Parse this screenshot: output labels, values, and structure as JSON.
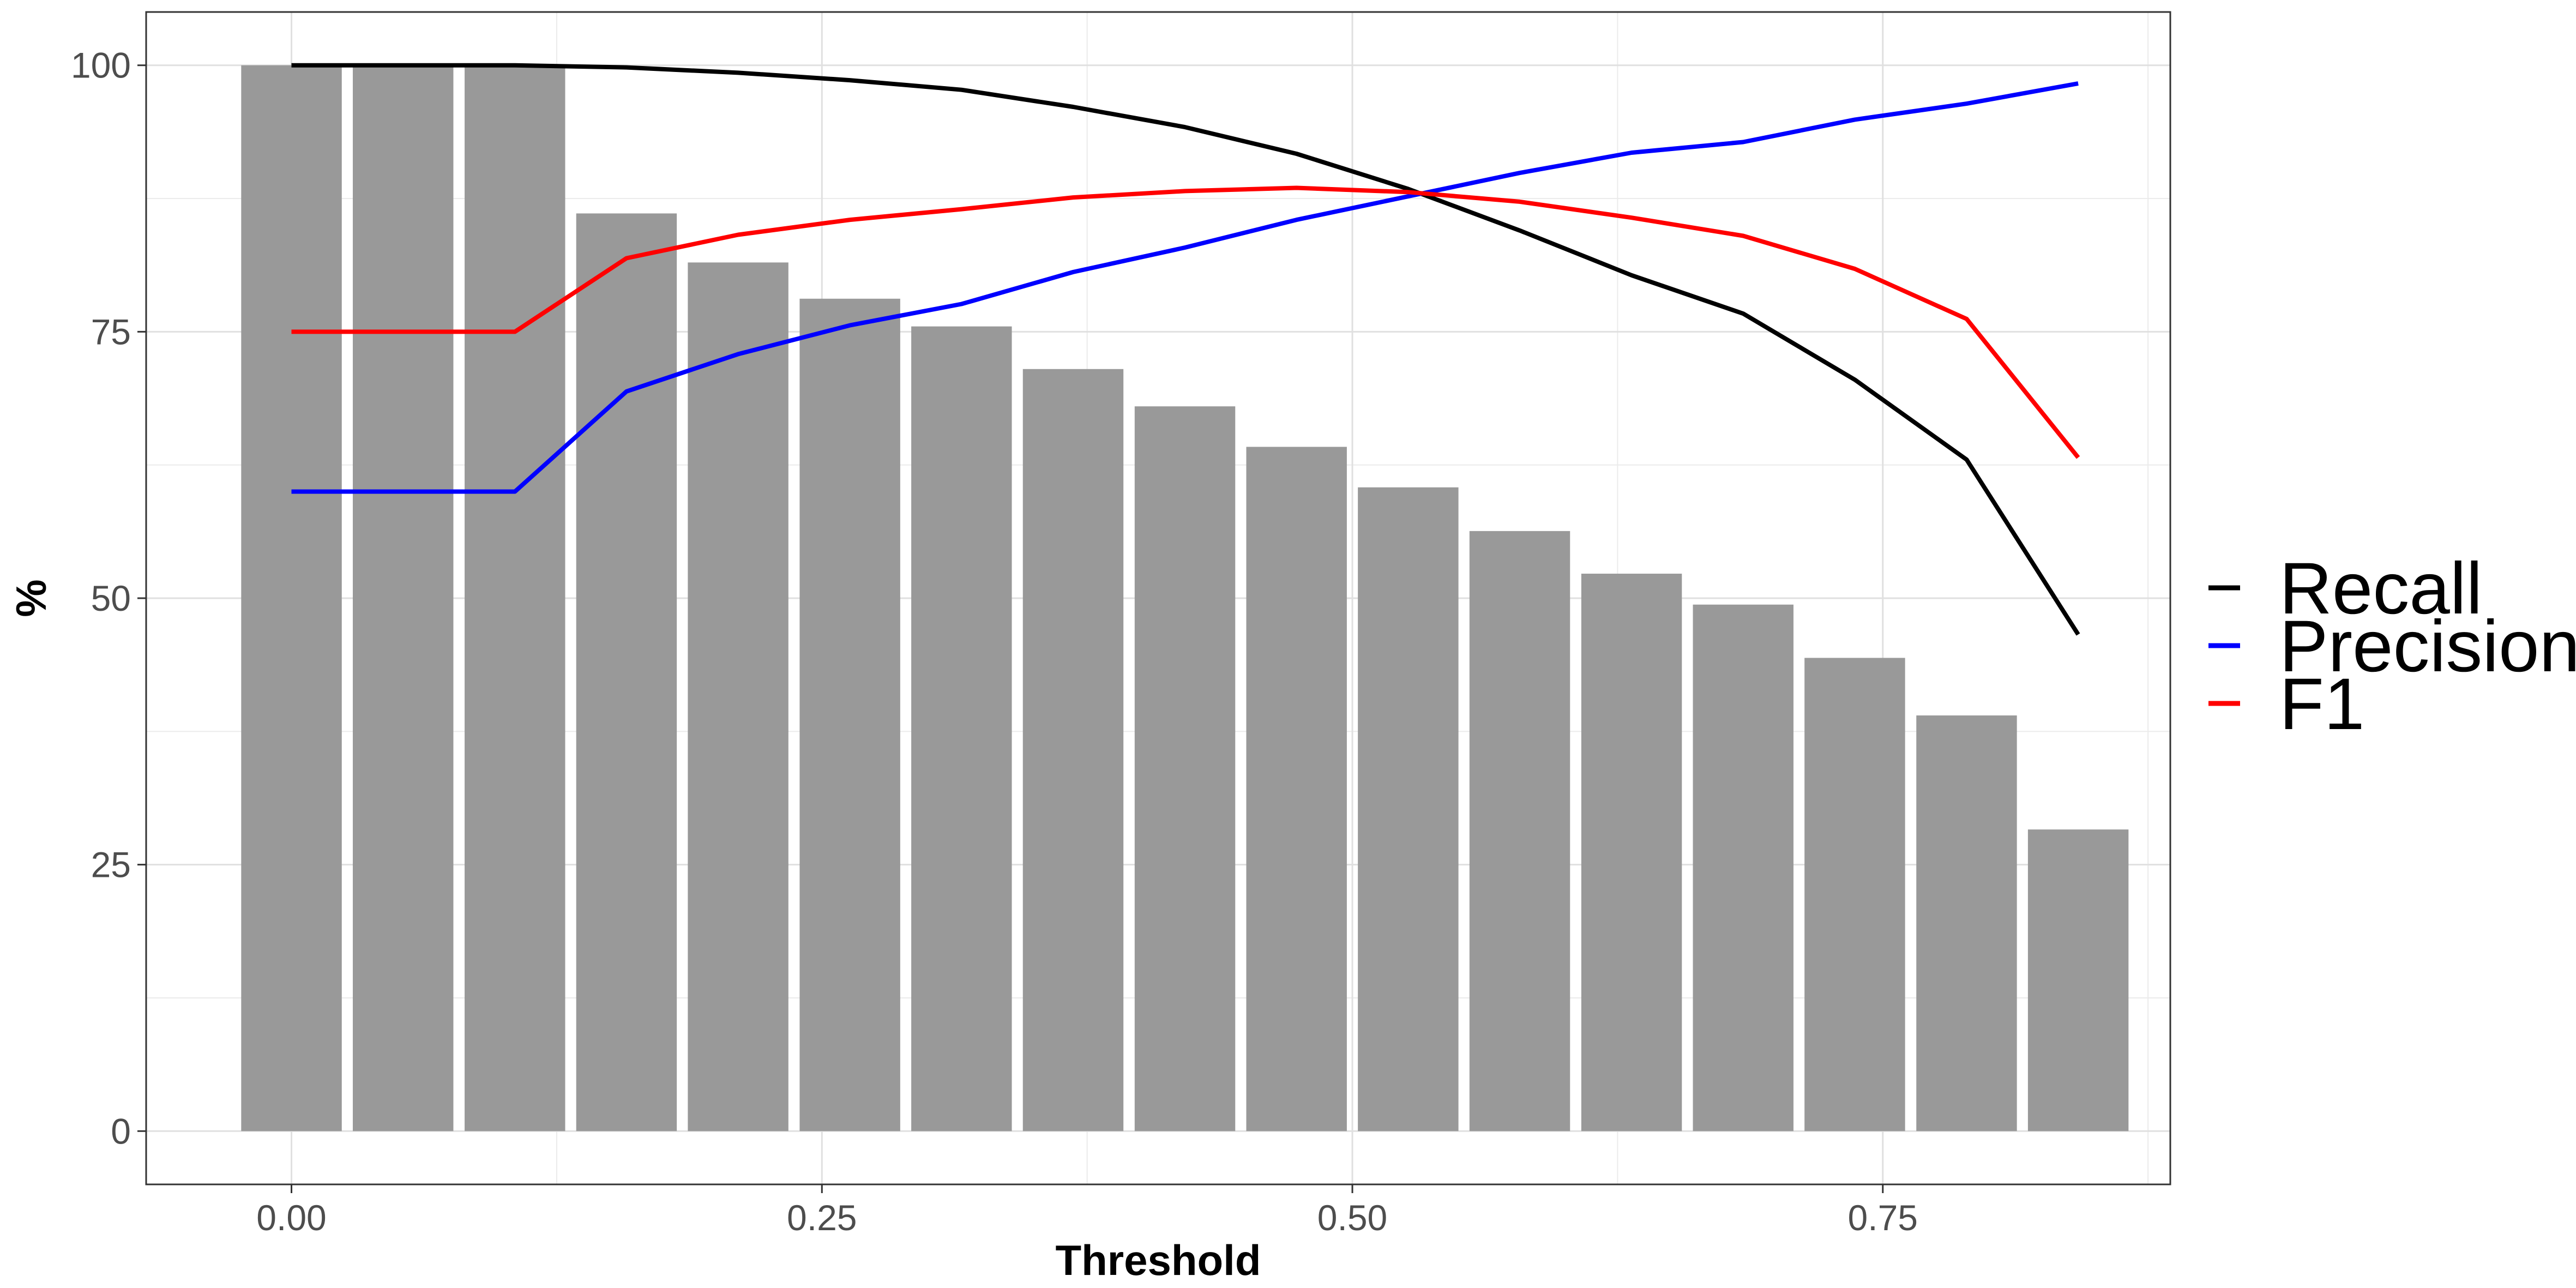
{
  "chart_data": {
    "type": "bar",
    "xlabel": "Threshold",
    "ylabel": "%",
    "xlim": [
      -0.0685,
      0.8855
    ],
    "ylim": [
      -5,
      105
    ],
    "x_ticks": [
      0.0,
      0.25,
      0.5,
      0.75
    ],
    "x_tick_labels": [
      "0.00",
      "0.25",
      "0.50",
      "0.75"
    ],
    "y_ticks": [
      0,
      25,
      50,
      75,
      100
    ],
    "y_tick_labels": [
      "0",
      "25",
      "50",
      "75",
      "100"
    ],
    "grid": true,
    "legend_position": "right",
    "bar_width": 0.0474,
    "bar_color": "#999999",
    "x": [
      0.0,
      0.0526,
      0.1053,
      0.1579,
      0.2105,
      0.2632,
      0.3158,
      0.3684,
      0.4211,
      0.4737,
      0.5263,
      0.5789,
      0.6316,
      0.6842,
      0.7368,
      0.7895,
      0.8421
    ],
    "bar_values": [
      100,
      100,
      100,
      86.1,
      81.5,
      78.1,
      75.5,
      71.5,
      68.0,
      64.2,
      60.4,
      56.3,
      52.3,
      49.4,
      44.4,
      39.0,
      28.3
    ],
    "series": [
      {
        "name": "Recall",
        "color": "#000000",
        "values": [
          100,
          100,
          100,
          99.8,
          99.3,
          98.6,
          97.7,
          96.1,
          94.2,
          91.7,
          88.4,
          84.5,
          80.3,
          76.7,
          70.5,
          63.0,
          46.6
        ]
      },
      {
        "name": "Precision",
        "color": "#0000ff",
        "values": [
          60,
          60,
          60,
          69.4,
          72.9,
          75.6,
          77.6,
          80.6,
          82.9,
          85.5,
          87.7,
          89.9,
          91.8,
          92.8,
          94.9,
          96.4,
          98.3
        ]
      },
      {
        "name": "F1",
        "color": "#ff0000",
        "values": [
          75,
          75,
          75,
          81.9,
          84.1,
          85.5,
          86.5,
          87.6,
          88.2,
          88.5,
          88.1,
          87.2,
          85.7,
          84.0,
          80.9,
          76.2,
          63.2
        ]
      }
    ]
  }
}
